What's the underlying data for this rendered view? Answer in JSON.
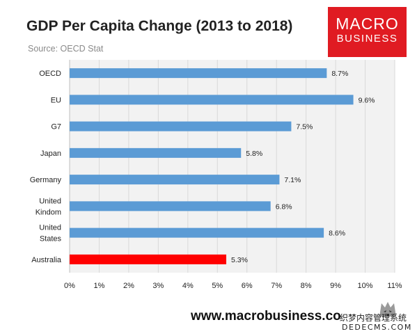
{
  "chart_data": {
    "type": "bar",
    "orientation": "horizontal",
    "title": "GDP Per Capita Change (2013 to 2018)",
    "subtitle": "Source: OECD Stat",
    "categories": [
      "OECD",
      "EU",
      "G7",
      "Japan",
      "Germany",
      "United Kindom",
      "United States",
      "Australia"
    ],
    "category_lines": [
      [
        "OECD"
      ],
      [
        "EU"
      ],
      [
        "G7"
      ],
      [
        "Japan"
      ],
      [
        "Germany"
      ],
      [
        "United",
        "Kindom"
      ],
      [
        "United",
        "States"
      ],
      [
        "Australia"
      ]
    ],
    "values": [
      8.7,
      9.6,
      7.5,
      5.8,
      7.1,
      6.8,
      8.6,
      5.3
    ],
    "data_labels": [
      "8.7%",
      "9.6%",
      "7.5%",
      "5.8%",
      "7.1%",
      "6.8%",
      "8.6%",
      "5.3%"
    ],
    "bar_colors": [
      "#5b9bd5",
      "#5b9bd5",
      "#5b9bd5",
      "#5b9bd5",
      "#5b9bd5",
      "#5b9bd5",
      "#5b9bd5",
      "#ff0000"
    ],
    "xlim": [
      0,
      11
    ],
    "x_ticks": [
      0,
      1,
      2,
      3,
      4,
      5,
      6,
      7,
      8,
      9,
      10,
      11
    ],
    "x_tick_labels": [
      "0%",
      "1%",
      "2%",
      "3%",
      "4%",
      "5%",
      "6%",
      "7%",
      "8%",
      "9%",
      "10%",
      "11%"
    ],
    "grid": "vertical",
    "legend": "none"
  },
  "header": {
    "title": "GDP Per Capita Change (2013 to 2018)",
    "source": "Source: OECD Stat"
  },
  "logo": {
    "line1": "MACRO",
    "line2": "BUSINESS",
    "color": "#e01b22"
  },
  "footer": {
    "url": "www.macrobusiness.co"
  },
  "watermark": {
    "cn": "织梦内容管理系统",
    "en": "DEDECMS.COM"
  },
  "colors": {
    "bar": "#5b9bd5",
    "highlight": "#ff0000",
    "grid": "#d9d9d9",
    "plot_bg": "#f2f2f2"
  }
}
